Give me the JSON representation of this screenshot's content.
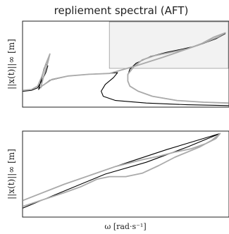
{
  "chart_data": [
    {
      "type": "line",
      "title": "repliement spectral (AFT)",
      "xlabel": "",
      "ylabel": "||x(t)||∞ [m]",
      "grid": false,
      "zoom_region": {
        "x": [
          0.42,
          1.0
        ],
        "y": [
          0.45,
          1.0
        ]
      },
      "series": [
        {
          "color": "#000000",
          "points": [
            [
              0.0,
              0.18
            ],
            [
              0.04,
              0.19
            ],
            [
              0.07,
              0.22
            ],
            [
              0.09,
              0.3
            ],
            [
              0.11,
              0.4
            ],
            [
              0.12,
              0.48
            ],
            [
              0.11,
              0.5
            ],
            [
              0.1,
              0.44
            ],
            [
              0.09,
              0.33
            ],
            [
              0.08,
              0.25
            ],
            [
              0.075,
              0.2
            ],
            [
              0.08,
              0.22
            ],
            [
              0.13,
              0.31
            ],
            [
              0.22,
              0.36
            ],
            [
              0.32,
              0.38
            ],
            [
              0.42,
              0.39
            ],
            [
              0.46,
              0.4
            ],
            [
              0.44,
              0.34
            ],
            [
              0.4,
              0.26
            ],
            [
              0.38,
              0.18
            ],
            [
              0.39,
              0.12
            ],
            [
              0.45,
              0.07
            ],
            [
              0.6,
              0.04
            ],
            [
              0.8,
              0.02
            ],
            [
              1.0,
              0.01
            ]
          ]
        },
        {
          "color": "#000000",
          "points": [
            [
              0.42,
              0.39
            ],
            [
              0.55,
              0.48
            ],
            [
              0.68,
              0.58
            ],
            [
              0.8,
              0.68
            ],
            [
              0.9,
              0.77
            ],
            [
              0.96,
              0.83
            ],
            [
              0.985,
              0.86
            ],
            [
              0.94,
              0.8
            ],
            [
              0.85,
              0.72
            ],
            [
              0.78,
              0.68
            ],
            [
              0.7,
              0.64
            ],
            [
              0.62,
              0.59
            ],
            [
              0.55,
              0.51
            ],
            [
              0.52,
              0.44
            ],
            [
              0.51,
              0.37
            ],
            [
              0.51,
              0.3
            ],
            [
              0.52,
              0.24
            ],
            [
              0.56,
              0.18
            ],
            [
              0.63,
              0.12
            ],
            [
              0.75,
              0.07
            ],
            [
              0.88,
              0.05
            ],
            [
              1.0,
              0.04
            ]
          ]
        },
        {
          "color": "#aaaaaa",
          "points": [
            [
              0.0,
              0.19
            ],
            [
              0.04,
              0.2
            ],
            [
              0.07,
              0.24
            ],
            [
              0.09,
              0.35
            ],
            [
              0.11,
              0.5
            ],
            [
              0.12,
              0.56
            ],
            [
              0.13,
              0.62
            ],
            [
              0.12,
              0.52
            ],
            [
              0.1,
              0.36
            ],
            [
              0.09,
              0.27
            ],
            [
              0.085,
              0.22
            ],
            [
              0.09,
              0.24
            ],
            [
              0.14,
              0.32
            ],
            [
              0.22,
              0.36
            ],
            [
              0.32,
              0.38
            ],
            [
              0.42,
              0.39
            ],
            [
              0.55,
              0.48
            ],
            [
              0.68,
              0.58
            ],
            [
              0.8,
              0.68
            ],
            [
              0.9,
              0.77
            ],
            [
              0.95,
              0.82
            ],
            [
              0.985,
              0.87
            ],
            [
              0.93,
              0.82
            ],
            [
              0.86,
              0.73
            ],
            [
              0.8,
              0.68
            ],
            [
              0.72,
              0.64
            ],
            [
              0.64,
              0.6
            ],
            [
              0.58,
              0.55
            ],
            [
              0.54,
              0.47
            ],
            [
              0.51,
              0.38
            ],
            [
              0.51,
              0.3
            ],
            [
              0.52,
              0.24
            ],
            [
              0.56,
              0.18
            ],
            [
              0.63,
              0.12
            ],
            [
              0.75,
              0.07
            ],
            [
              0.88,
              0.05
            ],
            [
              1.0,
              0.04
            ]
          ]
        }
      ]
    },
    {
      "type": "line",
      "title": "",
      "xlabel": "ω [rad·s⁻¹]",
      "ylabel": "||x(t)||∞ [m]",
      "grid": false,
      "series": [
        {
          "color": "#000000",
          "points": [
            [
              0.0,
              0.19
            ],
            [
              0.2,
              0.38
            ],
            [
              0.45,
              0.59
            ],
            [
              0.7,
              0.79
            ],
            [
              0.85,
              0.9
            ],
            [
              0.96,
              0.98
            ],
            [
              0.8,
              0.82
            ],
            [
              0.6,
              0.64
            ],
            [
              0.4,
              0.5
            ],
            [
              0.2,
              0.3
            ],
            [
              0.0,
              0.1
            ]
          ]
        },
        {
          "color": "#aaaaaa",
          "points": [
            [
              0.0,
              0.19
            ],
            [
              0.2,
              0.38
            ],
            [
              0.45,
              0.59
            ],
            [
              0.58,
              0.67
            ],
            [
              0.66,
              0.71
            ],
            [
              0.74,
              0.76
            ],
            [
              0.82,
              0.8
            ],
            [
              0.89,
              0.86
            ],
            [
              0.94,
              0.92
            ],
            [
              0.96,
              0.98
            ],
            [
              0.92,
              0.9
            ],
            [
              0.86,
              0.82
            ],
            [
              0.8,
              0.76
            ],
            [
              0.74,
              0.7
            ],
            [
              0.66,
              0.6
            ],
            [
              0.58,
              0.51
            ],
            [
              0.5,
              0.47
            ],
            [
              0.42,
              0.47
            ],
            [
              0.36,
              0.44
            ],
            [
              0.28,
              0.35
            ],
            [
              0.2,
              0.28
            ],
            [
              0.0,
              0.12
            ]
          ]
        }
      ]
    }
  ]
}
